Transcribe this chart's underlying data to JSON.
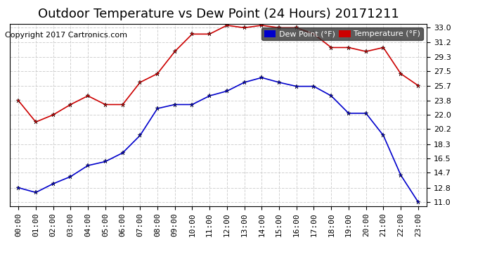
{
  "title": "Outdoor Temperature vs Dew Point (24 Hours) 20171211",
  "copyright": "Copyright 2017 Cartronics.com",
  "x_labels": [
    "00:00",
    "01:00",
    "02:00",
    "03:00",
    "04:00",
    "05:00",
    "06:00",
    "07:00",
    "08:00",
    "09:00",
    "10:00",
    "11:00",
    "12:00",
    "13:00",
    "14:00",
    "15:00",
    "16:00",
    "17:00",
    "18:00",
    "19:00",
    "20:00",
    "21:00",
    "22:00",
    "23:00"
  ],
  "temperature": [
    23.8,
    21.1,
    22.0,
    23.3,
    24.4,
    23.3,
    23.3,
    26.1,
    27.2,
    30.0,
    32.2,
    32.2,
    33.3,
    33.0,
    33.3,
    33.0,
    33.0,
    32.2,
    30.5,
    30.5,
    30.0,
    30.5,
    27.2,
    25.7
  ],
  "dew_point": [
    12.8,
    12.2,
    13.3,
    14.2,
    15.6,
    16.1,
    17.2,
    19.4,
    22.8,
    23.3,
    23.3,
    24.4,
    25.0,
    26.1,
    26.7,
    26.1,
    25.6,
    25.6,
    24.4,
    22.2,
    22.2,
    19.4,
    14.4,
    11.0
  ],
  "temp_color": "#cc0000",
  "dew_color": "#0000cc",
  "marker": "*",
  "ylim_min": 11.0,
  "ylim_max": 33.0,
  "yticks": [
    11.0,
    12.8,
    14.7,
    16.5,
    18.3,
    20.2,
    22.0,
    23.8,
    25.7,
    27.5,
    29.3,
    31.2,
    33.0
  ],
  "bg_color": "#ffffff",
  "grid_color": "#cccccc",
  "legend_dew_label": "Dew Point (°F)",
  "legend_temp_label": "Temperature (°F)",
  "title_fontsize": 13,
  "copyright_fontsize": 8,
  "tick_fontsize": 8,
  "legend_fontsize": 8
}
